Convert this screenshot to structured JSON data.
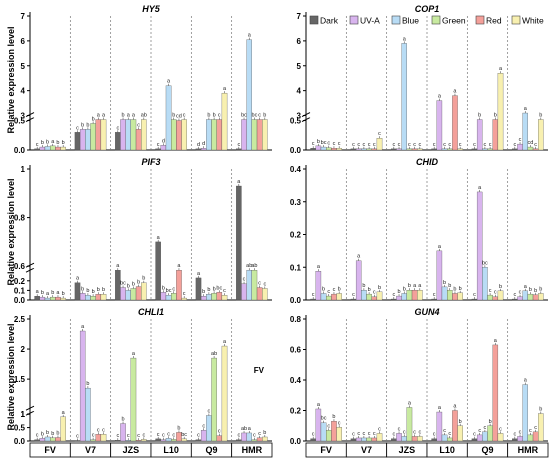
{
  "figure": {
    "ylabel": "Relative expression level",
    "cultivars": [
      "FV",
      "V7",
      "JZS",
      "L10",
      "Q9",
      "HMR"
    ],
    "legend": {
      "items": [
        {
          "label": "Dark",
          "color": "#666666"
        },
        {
          "label": "UV-A",
          "color": "#d8b4ee"
        },
        {
          "label": "Blue",
          "color": "#b8dcf5"
        },
        {
          "label": "Green",
          "color": "#c8eaa0"
        },
        {
          "label": "Red",
          "color": "#f4a09a"
        },
        {
          "label": "White",
          "color": "#f8f0b0"
        }
      ]
    }
  },
  "chart_data": [
    {
      "type": "bar",
      "title": "HY5",
      "categories": [
        "FV",
        "V7",
        "JZS",
        "L10",
        "Q9",
        "HMR"
      ],
      "axis_break": {
        "lower": [
          0,
          0.5
        ],
        "upper": [
          3,
          7
        ]
      },
      "ticks_lower": [
        0.0,
        0.5
      ],
      "ticks_upper": [
        3,
        4,
        5,
        6,
        7
      ],
      "series": [
        {
          "name": "Dark",
          "values": [
            0.02,
            0.3,
            0.3,
            0.02,
            0.02,
            0.02
          ],
          "letters": [
            "c",
            "c",
            "c",
            "c",
            "d",
            "c"
          ]
        },
        {
          "name": "UV-A",
          "values": [
            0.05,
            0.35,
            1.0,
            0.08,
            0.03,
            2.1
          ],
          "letters": [
            "b",
            "b",
            "b",
            "d",
            "d",
            "bc"
          ]
        },
        {
          "name": "Blue",
          "values": [
            0.06,
            0.35,
            1.6,
            4.2,
            1.2,
            6.05
          ],
          "letters": [
            "b",
            "b",
            "a",
            "a",
            "b",
            "a"
          ]
        },
        {
          "name": "Green",
          "values": [
            0.07,
            0.45,
            1.7,
            2.45,
            1.65,
            2.4
          ],
          "letters": [
            "a",
            "b",
            "a",
            "b",
            "b",
            "bc"
          ]
        },
        {
          "name": "Red",
          "values": [
            0.05,
            0.8,
            0.35,
            0.5,
            0.55,
            1.0
          ],
          "letters": [
            "b",
            "a",
            "c",
            "cd",
            "c",
            "c"
          ]
        },
        {
          "name": "White",
          "values": [
            0.05,
            0.85,
            1.1,
            0.6,
            3.9,
            2.6
          ],
          "letters": [
            "b",
            "a",
            "ab",
            "c",
            "a",
            "b"
          ]
        }
      ],
      "extra_letters": [
        "a",
        "b",
        "de",
        "a"
      ]
    },
    {
      "type": "bar",
      "title": "COP1",
      "categories": [
        "FV",
        "V7",
        "JZS",
        "L10",
        "Q9",
        "HMR"
      ],
      "axis_break": {
        "lower": [
          0,
          0.5
        ],
        "upper": [
          3,
          7
        ]
      },
      "ticks_lower": [
        0.0,
        0.5
      ],
      "ticks_upper": [
        3,
        4,
        5,
        6,
        7
      ],
      "series": [
        {
          "name": "Dark",
          "values": [
            0.03,
            0.02,
            0.02,
            0.02,
            0.02,
            0.02
          ],
          "letters": [
            "c",
            "c",
            "c",
            "c",
            "c",
            "c"
          ]
        },
        {
          "name": "UV-A",
          "values": [
            0.07,
            0.02,
            0.02,
            3.6,
            0.9,
            0.1
          ],
          "letters": [
            "b",
            "c",
            "c",
            "a",
            "b",
            "c"
          ]
        },
        {
          "name": "Blue",
          "values": [
            0.05,
            0.02,
            5.9,
            0.02,
            0.02,
            3.1
          ],
          "letters": [
            "bc",
            "c",
            "a",
            "c",
            "c",
            "a"
          ]
        },
        {
          "name": "Green",
          "values": [
            0.04,
            0.02,
            0.02,
            0.02,
            0.02,
            0.05
          ],
          "letters": [
            "c",
            "c",
            "c",
            "c",
            "c",
            "cd"
          ]
        },
        {
          "name": "Red",
          "values": [
            0.03,
            0.02,
            0.02,
            3.8,
            1.4,
            0.02
          ],
          "letters": [
            "c",
            "c",
            "c",
            "a",
            "b",
            "c"
          ]
        },
        {
          "name": "White",
          "values": [
            0.03,
            0.2,
            0.02,
            0.02,
            4.7,
            1.8
          ],
          "letters": [
            "c",
            "c",
            "c",
            "c",
            "a",
            "b"
          ]
        }
      ]
    },
    {
      "type": "bar",
      "title": "PIF3",
      "categories": [
        "FV",
        "V7",
        "JZS",
        "L10",
        "Q9",
        "HMR"
      ],
      "axis_break": {
        "lower": [
          0,
          0.3
        ],
        "upper": [
          0.6,
          1.0
        ]
      },
      "ticks_lower": [
        0.0,
        0.1,
        0.2
      ],
      "ticks_upper": [
        0.6,
        0.8,
        1.0
      ],
      "series": [
        {
          "name": "Dark",
          "values": [
            0.04,
            0.18,
            0.48,
            0.7,
            0.23,
            0.93
          ],
          "letters": [
            "a",
            "a",
            "a",
            "a",
            "a",
            "a"
          ]
        },
        {
          "name": "UV-A",
          "values": [
            0.03,
            0.07,
            0.13,
            0.08,
            0.04,
            0.17
          ],
          "letters": [
            "b",
            "b",
            "bc",
            "b",
            "b",
            "c"
          ]
        },
        {
          "name": "Blue",
          "values": [
            0.02,
            0.05,
            0.1,
            0.05,
            0.06,
            0.58
          ],
          "letters": [
            "a",
            "b",
            "b",
            "bc",
            "b",
            "ab"
          ]
        },
        {
          "name": "Green",
          "values": [
            0.03,
            0.04,
            0.12,
            0.07,
            0.07,
            0.46
          ],
          "letters": [
            "b",
            "b",
            "b",
            "c",
            "b",
            "ab"
          ]
        },
        {
          "name": "Red",
          "values": [
            0.03,
            0.06,
            0.14,
            0.35,
            0.08,
            0.13
          ],
          "letters": [
            "a",
            "b",
            "b",
            "a",
            "bc",
            "c"
          ]
        },
        {
          "name": "White",
          "values": [
            0.02,
            0.06,
            0.18,
            0.02,
            0.05,
            0.12
          ],
          "letters": [
            "b",
            "b",
            "b",
            "c",
            "c",
            "c"
          ]
        }
      ]
    },
    {
      "type": "bar",
      "title": "CHID",
      "categories": [
        "FV",
        "V7",
        "JZS",
        "L10",
        "Q9",
        "HMR"
      ],
      "ylim": [
        0,
        0.4
      ],
      "ticks": [
        0.0,
        0.1,
        0.2,
        0.3,
        0.4
      ],
      "series": [
        {
          "name": "Dark",
          "values": [
            0.003,
            0.003,
            0.003,
            0.003,
            0.003,
            0.003
          ],
          "letters": [
            "c",
            "c",
            "c",
            "c",
            "c",
            "c"
          ]
        },
        {
          "name": "UV-A",
          "values": [
            0.088,
            0.12,
            0.012,
            0.15,
            0.33,
            0.01
          ],
          "letters": [
            "a",
            "a",
            "b",
            "a",
            "a",
            "c"
          ]
        },
        {
          "name": "Blue",
          "values": [
            0.02,
            0.03,
            0.02,
            0.04,
            0.1,
            0.028
          ],
          "letters": [
            "b",
            "b",
            "b",
            "b",
            "bc",
            "a"
          ]
        },
        {
          "name": "Green",
          "values": [
            0.012,
            0.018,
            0.03,
            0.03,
            0.015,
            0.018
          ],
          "letters": [
            "c",
            "b",
            "b",
            "b",
            "c",
            "b"
          ]
        },
        {
          "name": "Red",
          "values": [
            0.018,
            0.01,
            0.03,
            0.02,
            0.01,
            0.016
          ],
          "letters": [
            "c",
            "c",
            "a",
            "b",
            "c",
            "b"
          ]
        },
        {
          "name": "White",
          "values": [
            0.02,
            0.025,
            0.03,
            0.022,
            0.028,
            0.02
          ],
          "letters": [
            "b",
            "b",
            "a",
            "b",
            "b",
            "b"
          ]
        }
      ]
    },
    {
      "type": "bar",
      "title": "CHLI1",
      "categories": [
        "FV",
        "V7",
        "JZS",
        "L10",
        "Q9",
        "HMR"
      ],
      "axis_break": {
        "lower": [
          0,
          1.0
        ],
        "upper": [
          1.0,
          2.5
        ]
      },
      "ticks_lower": [
        0.0,
        0.5,
        1.0
      ],
      "ticks_upper": [
        1.0,
        1.5,
        2.0,
        2.5
      ],
      "series": [
        {
          "name": "Dark",
          "values": [
            0.05,
            0.02,
            0.03,
            0.08,
            0.05,
            0.05
          ],
          "letters": [
            "c",
            "c",
            "c",
            "c",
            "c",
            "c"
          ]
        },
        {
          "name": "UV-A",
          "values": [
            0.1,
            2.3,
            0.65,
            0.05,
            0.4,
            0.3
          ],
          "letters": [
            "b",
            "a",
            "b",
            "c",
            "c",
            "ab"
          ]
        },
        {
          "name": "Blue",
          "values": [
            0.15,
            1.35,
            0.03,
            0.1,
            0.95,
            0.3
          ],
          "letters": [
            "b",
            "b",
            "c",
            "c",
            "c",
            "a"
          ]
        },
        {
          "name": "Green",
          "values": [
            0.12,
            0.05,
            1.85,
            0.06,
            1.85,
            0.05
          ],
          "letters": [
            "b",
            "c",
            "a",
            "c",
            "ab",
            "c"
          ]
        },
        {
          "name": "Red",
          "values": [
            0.13,
            0.25,
            0.03,
            0.32,
            0.2,
            0.12
          ],
          "letters": [
            "b",
            "c",
            "c",
            "b",
            "c",
            "c"
          ]
        },
        {
          "name": "White",
          "values": [
            0.9,
            0.25,
            0.06,
            0.08,
            2.05,
            0.15
          ],
          "letters": [
            "a",
            "c",
            "c",
            "bc",
            "a",
            "b"
          ]
        }
      ],
      "annotation": "FV"
    },
    {
      "type": "bar",
      "title": "GUN4",
      "categories": [
        "FV",
        "V7",
        "JZS",
        "L10",
        "Q9",
        "HMR"
      ],
      "ylim": [
        0,
        0.8
      ],
      "ticks": [
        0.0,
        0.2,
        0.4,
        0.6,
        0.8
      ],
      "series": [
        {
          "name": "Dark",
          "values": [
            0.015,
            0.015,
            0.015,
            0.015,
            0.015,
            0.015
          ],
          "letters": [
            "c",
            "c",
            "c",
            "c",
            "c",
            "c"
          ]
        },
        {
          "name": "UV-A",
          "values": [
            0.21,
            0.02,
            0.05,
            0.19,
            0.04,
            0.03
          ],
          "letters": [
            "a",
            "c",
            "c",
            "a",
            "c",
            "c"
          ]
        },
        {
          "name": "Blue",
          "values": [
            0.12,
            0.02,
            0.03,
            0.04,
            0.06,
            0.37
          ],
          "letters": [
            "bc",
            "c",
            "c",
            "c",
            "c",
            "a"
          ]
        },
        {
          "name": "Green",
          "values": [
            0.07,
            0.02,
            0.22,
            0.02,
            0.1,
            0.04
          ],
          "letters": [
            "c",
            "c",
            "a",
            "c",
            "b",
            "c"
          ]
        },
        {
          "name": "Red",
          "values": [
            0.13,
            0.02,
            0.03,
            0.2,
            0.63,
            0.06
          ],
          "letters": [
            "b",
            "c",
            "c",
            "a",
            "a",
            "c"
          ]
        },
        {
          "name": "White",
          "values": [
            0.09,
            0.05,
            0.03,
            0.1,
            0.05,
            0.18
          ],
          "letters": [
            "c",
            "c",
            "c",
            "b",
            "c",
            "b"
          ]
        }
      ]
    }
  ]
}
